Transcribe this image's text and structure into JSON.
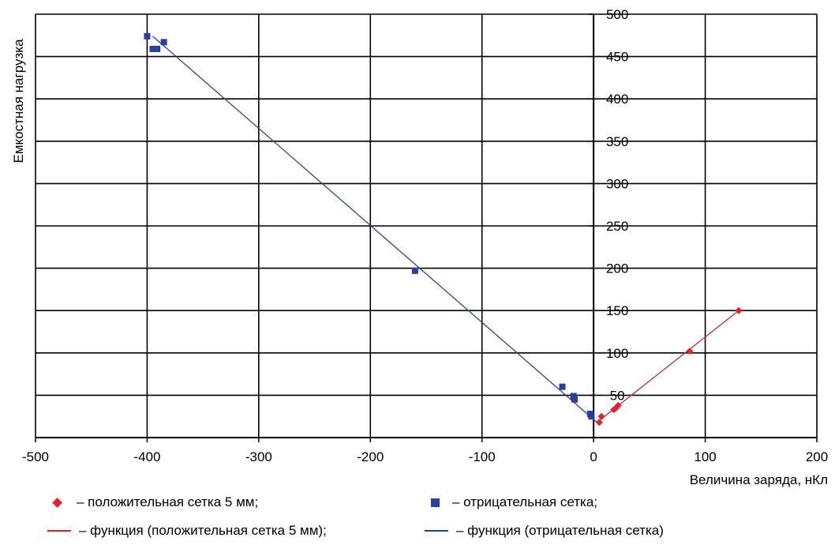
{
  "chart_data": {
    "type": "scatter",
    "title": "",
    "xlabel": "Величина заряда, нКл",
    "ylabel": "Емкостная нагрузка",
    "xlim": [
      -500,
      200
    ],
    "ylim": [
      0,
      500
    ],
    "x_ticks": [
      -500,
      -400,
      -300,
      -200,
      -100,
      0,
      100,
      200
    ],
    "y_ticks": [
      50,
      100,
      150,
      200,
      250,
      300,
      350,
      400,
      450,
      500
    ],
    "x_tick_labels": [
      "-500",
      "-400",
      "-300",
      "-200",
      "-100",
      "0",
      "100",
      "200"
    ],
    "y_tick_labels": [
      "50",
      "100",
      "150",
      "200",
      "250",
      "300",
      "350",
      "400",
      "450",
      "500"
    ],
    "grid": true,
    "legend_placement": "bottom",
    "series": [
      {
        "name": "– положительная сетка 5 мм;",
        "kind": "scatter",
        "marker": "diamond",
        "color": "#e8202a",
        "points": [
          [
            5,
            18
          ],
          [
            7,
            25
          ],
          [
            18,
            33
          ],
          [
            20,
            35
          ],
          [
            22,
            38
          ],
          [
            86,
            102
          ],
          [
            130,
            150
          ]
        ]
      },
      {
        "name": "– отрицательная сетка;",
        "kind": "scatter",
        "marker": "square",
        "color": "#2a3f9b",
        "points": [
          [
            -400,
            474
          ],
          [
            -395,
            459
          ],
          [
            -391,
            459
          ],
          [
            -385,
            467
          ],
          [
            -160,
            197
          ],
          [
            -28,
            60
          ],
          [
            -18,
            49
          ],
          [
            -17,
            45
          ],
          [
            -3,
            28
          ],
          [
            -2,
            25
          ]
        ]
      },
      {
        "name": "– функция (положительная сетка 5 мм);",
        "kind": "line",
        "color": "#e8202a",
        "points": [
          [
            3,
            18
          ],
          [
            130,
            150
          ]
        ]
      },
      {
        "name": "– функция (отрицательная сетка)",
        "kind": "line",
        "color": "#2a3f9b",
        "points": [
          [
            -395,
            474
          ],
          [
            3,
            18
          ]
        ]
      }
    ]
  }
}
